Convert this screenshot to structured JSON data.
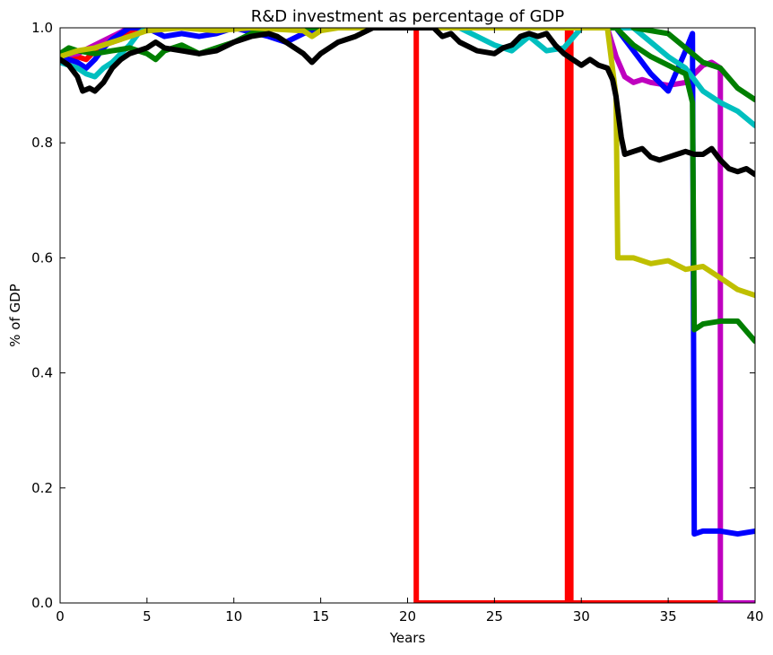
{
  "chart_data": {
    "type": "line",
    "title": "R&D investment as percentage of  GDP",
    "xlabel": "Years",
    "ylabel": "% of GDP",
    "xlim": [
      0,
      40
    ],
    "ylim": [
      0.0,
      1.0
    ],
    "x_ticks": [
      "0",
      "5",
      "10",
      "15",
      "20",
      "25",
      "30",
      "35",
      "40"
    ],
    "y_ticks": [
      "0.0",
      "0.2",
      "0.4",
      "0.6",
      "0.8",
      "1.0"
    ],
    "grid": false,
    "legend": "none",
    "series": [
      {
        "color": "#ff0000",
        "points": [
          [
            0,
            0.94
          ],
          [
            0.5,
            0.945
          ],
          [
            1,
            0.95
          ],
          [
            1.5,
            0.945
          ],
          [
            2,
            0.96
          ],
          [
            2.5,
            0.97
          ],
          [
            3,
            0.975
          ],
          [
            3.5,
            0.98
          ],
          [
            4,
            0.99
          ],
          [
            4.5,
            1.0
          ],
          [
            5,
            1.0
          ],
          [
            10,
            1.0
          ],
          [
            15,
            1.0
          ],
          [
            20,
            1.0
          ],
          [
            20.5,
            1.0
          ],
          [
            20.5,
            0.0
          ],
          [
            29.2,
            0.0
          ],
          [
            29.2,
            1.0
          ],
          [
            29.4,
            1.0
          ],
          [
            29.4,
            0.0
          ],
          [
            40,
            0.0
          ]
        ]
      },
      {
        "color": "#bf00bf",
        "points": [
          [
            0,
            0.95
          ],
          [
            1,
            0.955
          ],
          [
            2,
            0.97
          ],
          [
            3,
            0.985
          ],
          [
            4,
            1.0
          ],
          [
            31.5,
            1.0
          ],
          [
            32,
            0.95
          ],
          [
            32.5,
            0.915
          ],
          [
            33,
            0.905
          ],
          [
            33.5,
            0.91
          ],
          [
            34,
            0.905
          ],
          [
            35,
            0.9
          ],
          [
            36,
            0.905
          ],
          [
            37,
            0.935
          ],
          [
            37.5,
            0.94
          ],
          [
            38,
            0.93
          ],
          [
            38,
            0.0
          ],
          [
            38.2,
            0.0
          ],
          [
            40,
            0.0
          ]
        ]
      },
      {
        "color": "#0000ff",
        "points": [
          [
            0,
            0.95
          ],
          [
            0.5,
            0.945
          ],
          [
            1,
            0.94
          ],
          [
            1.5,
            0.93
          ],
          [
            2,
            0.945
          ],
          [
            2.5,
            0.965
          ],
          [
            3,
            0.98
          ],
          [
            3.5,
            0.99
          ],
          [
            4,
            1.0
          ],
          [
            5,
            1.0
          ],
          [
            6,
            0.985
          ],
          [
            7,
            0.99
          ],
          [
            8,
            0.985
          ],
          [
            9,
            0.99
          ],
          [
            10,
            1.0
          ],
          [
            12,
            0.985
          ],
          [
            13,
            0.975
          ],
          [
            14,
            0.99
          ],
          [
            15,
            1.0
          ],
          [
            32,
            1.0
          ],
          [
            33,
            0.96
          ],
          [
            34,
            0.92
          ],
          [
            35,
            0.89
          ],
          [
            36,
            0.96
          ],
          [
            36.4,
            0.99
          ],
          [
            36.5,
            0.12
          ],
          [
            37,
            0.125
          ],
          [
            38,
            0.125
          ],
          [
            39,
            0.12
          ],
          [
            40,
            0.125
          ]
        ]
      },
      {
        "color": "#00bfbf",
        "points": [
          [
            0,
            0.94
          ],
          [
            0.5,
            0.935
          ],
          [
            1,
            0.93
          ],
          [
            1.5,
            0.92
          ],
          [
            2,
            0.915
          ],
          [
            2.5,
            0.93
          ],
          [
            3,
            0.94
          ],
          [
            3.5,
            0.955
          ],
          [
            4,
            0.97
          ],
          [
            4.5,
            0.99
          ],
          [
            5,
            1.0
          ],
          [
            23,
            1.0
          ],
          [
            24,
            0.985
          ],
          [
            25,
            0.97
          ],
          [
            26,
            0.96
          ],
          [
            27,
            0.985
          ],
          [
            28,
            0.96
          ],
          [
            29,
            0.965
          ],
          [
            30,
            1.0
          ],
          [
            33,
            1.0
          ],
          [
            34,
            0.975
          ],
          [
            35,
            0.95
          ],
          [
            36,
            0.93
          ],
          [
            37,
            0.89
          ],
          [
            38,
            0.87
          ],
          [
            39,
            0.855
          ],
          [
            40,
            0.83
          ]
        ]
      },
      {
        "color": "#007f00",
        "points": [
          [
            0,
            0.955
          ],
          [
            0.5,
            0.965
          ],
          [
            1,
            0.96
          ],
          [
            2,
            0.955
          ],
          [
            3,
            0.96
          ],
          [
            4,
            0.965
          ],
          [
            5,
            0.955
          ],
          [
            5.5,
            0.945
          ],
          [
            6,
            0.96
          ],
          [
            7,
            0.97
          ],
          [
            8,
            0.955
          ],
          [
            9,
            0.965
          ],
          [
            10,
            0.975
          ],
          [
            11,
            0.99
          ],
          [
            12,
            1.0
          ],
          [
            32,
            1.0
          ],
          [
            33,
            0.97
          ],
          [
            34,
            0.95
          ],
          [
            35,
            0.935
          ],
          [
            36,
            0.92
          ],
          [
            36.4,
            0.87
          ],
          [
            36.5,
            0.475
          ],
          [
            37,
            0.485
          ],
          [
            38,
            0.49
          ],
          [
            39,
            0.49
          ],
          [
            40,
            0.455
          ]
        ]
      },
      {
        "color": "#007f00",
        "points": [
          [
            33,
            1.0
          ],
          [
            34,
            0.995
          ],
          [
            35,
            0.99
          ],
          [
            36,
            0.965
          ],
          [
            37,
            0.94
          ],
          [
            38,
            0.93
          ],
          [
            39,
            0.895
          ],
          [
            40,
            0.875
          ]
        ]
      },
      {
        "color": "#bfbf00",
        "points": [
          [
            0,
            0.95
          ],
          [
            1,
            0.96
          ],
          [
            2,
            0.965
          ],
          [
            3,
            0.975
          ],
          [
            4,
            0.985
          ],
          [
            5,
            0.995
          ],
          [
            7,
            1.0
          ],
          [
            9,
            0.995
          ],
          [
            11,
            1.0
          ],
          [
            14,
            0.995
          ],
          [
            14.5,
            0.985
          ],
          [
            15,
            0.995
          ],
          [
            16,
            1.0
          ],
          [
            31.5,
            1.0
          ],
          [
            32,
            0.88
          ],
          [
            32.1,
            0.6
          ],
          [
            33,
            0.6
          ],
          [
            34,
            0.59
          ],
          [
            35,
            0.595
          ],
          [
            36,
            0.58
          ],
          [
            37,
            0.585
          ],
          [
            38,
            0.565
          ],
          [
            39,
            0.545
          ],
          [
            40,
            0.535
          ]
        ]
      },
      {
        "color": "#000000",
        "points": [
          [
            0,
            0.945
          ],
          [
            0.5,
            0.935
          ],
          [
            1,
            0.915
          ],
          [
            1.3,
            0.89
          ],
          [
            1.7,
            0.895
          ],
          [
            2,
            0.89
          ],
          [
            2.5,
            0.905
          ],
          [
            3,
            0.93
          ],
          [
            3.5,
            0.945
          ],
          [
            4,
            0.955
          ],
          [
            4.5,
            0.96
          ],
          [
            5,
            0.965
          ],
          [
            5.5,
            0.975
          ],
          [
            6,
            0.965
          ],
          [
            7,
            0.96
          ],
          [
            8,
            0.955
          ],
          [
            9,
            0.96
          ],
          [
            10,
            0.975
          ],
          [
            11,
            0.985
          ],
          [
            12,
            0.99
          ],
          [
            12.5,
            0.985
          ],
          [
            13,
            0.975
          ],
          [
            13.5,
            0.965
          ],
          [
            14,
            0.955
          ],
          [
            14.5,
            0.94
          ],
          [
            15,
            0.955
          ],
          [
            15.5,
            0.965
          ],
          [
            16,
            0.975
          ],
          [
            17,
            0.985
          ],
          [
            18,
            1.0
          ],
          [
            21.5,
            1.0
          ],
          [
            22,
            0.985
          ],
          [
            22.5,
            0.99
          ],
          [
            23,
            0.975
          ],
          [
            24,
            0.96
          ],
          [
            25,
            0.955
          ],
          [
            25.5,
            0.965
          ],
          [
            26,
            0.97
          ],
          [
            26.5,
            0.985
          ],
          [
            27,
            0.99
          ],
          [
            27.5,
            0.985
          ],
          [
            28,
            0.99
          ],
          [
            28.5,
            0.97
          ],
          [
            29,
            0.955
          ],
          [
            29.5,
            0.945
          ],
          [
            30,
            0.935
          ],
          [
            30.5,
            0.945
          ],
          [
            31,
            0.935
          ],
          [
            31.5,
            0.93
          ],
          [
            31.8,
            0.91
          ],
          [
            32,
            0.88
          ],
          [
            32.3,
            0.81
          ],
          [
            32.5,
            0.78
          ],
          [
            33,
            0.785
          ],
          [
            33.5,
            0.79
          ],
          [
            34,
            0.775
          ],
          [
            34.5,
            0.77
          ],
          [
            35,
            0.775
          ],
          [
            35.5,
            0.78
          ],
          [
            36,
            0.785
          ],
          [
            36.5,
            0.78
          ],
          [
            37,
            0.78
          ],
          [
            37.5,
            0.79
          ],
          [
            38,
            0.77
          ],
          [
            38.5,
            0.755
          ],
          [
            39,
            0.75
          ],
          [
            39.5,
            0.755
          ],
          [
            40,
            0.745
          ]
        ]
      }
    ]
  }
}
